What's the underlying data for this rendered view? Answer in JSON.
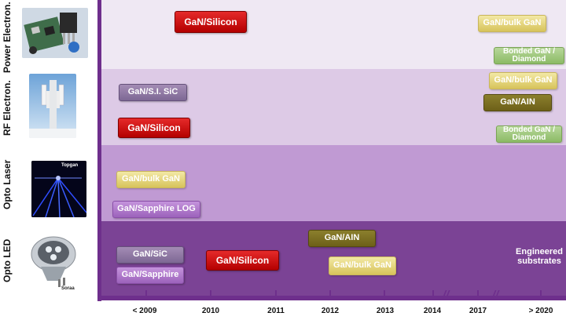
{
  "rows": {
    "power": "Power Electron.",
    "rf": "RF Electron.",
    "laser": "Opto Laser",
    "led": "Opto LED"
  },
  "images": {
    "laser_caption": "Topgan",
    "led_caption": "Soraa"
  },
  "tags": {
    "power_gan_si": "GaN/Silicon",
    "power_bulk": "GaN/bulk GaN",
    "power_diamond": "Bonded GaN / Diamond",
    "rf_si_sic": "GaN/S.I. SiC",
    "rf_gan_si": "GaN/Silicon",
    "rf_bulk": "GaN/bulk GaN",
    "rf_ain": "GaN/AIN",
    "rf_diamond": "Bonded GaN / Diamond",
    "laser_bulk": "GaN/bulk GaN",
    "laser_sapphire_log": "GaN/Sapphire LOG",
    "led_sic": "GaN/SiC",
    "led_sapphire": "GaN/Sapphire",
    "led_gan_si": "GaN/Silicon",
    "led_ain": "GaN/AIN",
    "led_bulk": "GaN/bulk GaN",
    "led_engineered": "Engineered substrates"
  },
  "years": [
    "< 2009",
    "2010",
    "2011",
    "2012",
    "2013",
    "2014",
    "2017",
    "> 2020"
  ],
  "break_mark": "//",
  "colors": {
    "axis": "#6e2f8c",
    "band_power": "#efe8f3",
    "band_rf": "#ddcae6",
    "band_laser": "#c09ad3",
    "band_led": "#7b4395"
  }
}
